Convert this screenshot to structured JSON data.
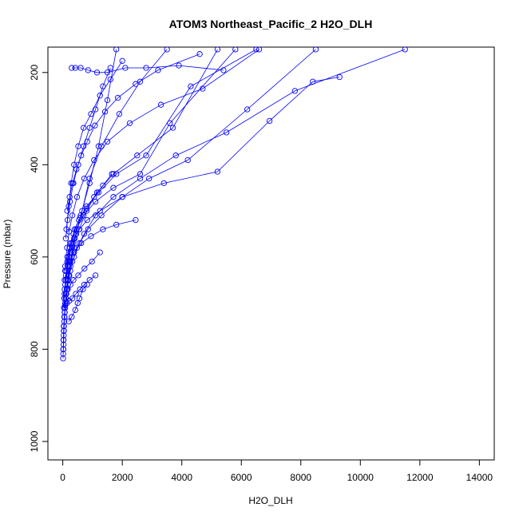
{
  "chart_data": {
    "type": "scatter",
    "title": "ATOM3 Northeast_Pacific_2 H2O_DLH",
    "xlabel": "H2O_DLH",
    "ylabel": "Pressure (mbar)",
    "xlim": [
      -500,
      14500
    ],
    "ylim": [
      1040,
      145
    ],
    "y_inverted": true,
    "x_ticks": [
      0,
      2000,
      4000,
      6000,
      8000,
      10000,
      12000,
      14000
    ],
    "x_tick_labels": [
      "0",
      "2000",
      "4000",
      "6000",
      "8000",
      "10000",
      "12000",
      "14000"
    ],
    "y_ticks": [
      200,
      400,
      600,
      800,
      1000
    ],
    "y_tick_labels": [
      "200",
      "400",
      "600",
      "800",
      "1000"
    ],
    "grid": false,
    "legend": "none",
    "line_color": "#0000ff",
    "marker": "open-circle",
    "series": [
      {
        "x": [
          10,
          15,
          20,
          30,
          60,
          100,
          150,
          250,
          400,
          600,
          900,
          1200,
          1500,
          1800
        ],
        "y": [
          820,
          800,
          780,
          750,
          720,
          690,
          650,
          610,
          560,
          510,
          440,
          360,
          260,
          150
        ]
      },
      {
        "x": [
          15,
          25,
          40,
          60,
          90,
          130,
          200,
          300,
          450,
          650,
          900,
          1300,
          1900,
          2600,
          3500
        ],
        "y": [
          810,
          790,
          760,
          730,
          700,
          670,
          640,
          600,
          550,
          500,
          430,
          360,
          290,
          220,
          150
        ]
      },
      {
        "x": [
          20,
          30,
          50,
          80,
          120,
          180,
          260,
          380,
          550,
          800,
          1150,
          1700,
          2500,
          3700,
          5200
        ],
        "y": [
          800,
          770,
          740,
          710,
          680,
          650,
          620,
          580,
          540,
          500,
          460,
          420,
          380,
          320,
          150
        ]
      },
      {
        "x": [
          25,
          40,
          70,
          110,
          170,
          250,
          380,
          560,
          850,
          1300,
          2000,
          2900,
          4200,
          6200,
          8500
        ],
        "y": [
          780,
          750,
          720,
          690,
          660,
          630,
          600,
          570,
          540,
          510,
          470,
          430,
          390,
          280,
          150
        ]
      },
      {
        "x": [
          30,
          50,
          80,
          140,
          220,
          320,
          480,
          720,
          1100,
          1700,
          2600,
          3800,
          5500,
          7800,
          11500
        ],
        "y": [
          760,
          730,
          700,
          670,
          640,
          610,
          580,
          550,
          510,
          470,
          430,
          380,
          330,
          240,
          150
        ]
      },
      {
        "x": [
          40,
          60,
          100,
          160,
          250,
          380,
          560,
          820,
          1250,
          2000,
          3400,
          5200,
          6950,
          8400,
          9300
        ],
        "y": [
          710,
          680,
          650,
          620,
          590,
          560,
          540,
          520,
          500,
          470,
          440,
          415,
          305,
          220,
          210
        ]
      },
      {
        "x": [
          50,
          80,
          120,
          200,
          300,
          450,
          700,
          1100,
          1700,
          2600,
          3600,
          5800
        ],
        "y": [
          690,
          660,
          630,
          600,
          570,
          540,
          510,
          480,
          450,
          420,
          310,
          150
        ]
      },
      {
        "x": [
          60,
          100,
          150,
          240,
          360,
          540,
          800,
          1200,
          1800,
          2800,
          4300,
          6500
        ],
        "y": [
          670,
          640,
          610,
          580,
          550,
          520,
          490,
          460,
          420,
          380,
          230,
          150
        ]
      },
      {
        "x": [
          300,
          420,
          600,
          850,
          1150,
          1500,
          2100,
          2800,
          3900,
          5400
        ],
        "y": [
          190,
          190,
          190,
          195,
          200,
          200,
          190,
          190,
          185,
          195
        ]
      },
      {
        "x": [
          80,
          140,
          210,
          320,
          480,
          720,
          1050,
          1500,
          2250,
          3300,
          4700,
          6600
        ],
        "y": [
          620,
          580,
          545,
          510,
          470,
          430,
          390,
          350,
          310,
          270,
          235,
          150
        ]
      },
      {
        "x": [
          100,
          160,
          240,
          360,
          520,
          700,
          900,
          1100,
          1350,
          1600
        ],
        "y": [
          560,
          520,
          480,
          440,
          400,
          360,
          320,
          280,
          230,
          190
        ]
      },
      {
        "x": [
          120,
          200,
          280,
          380,
          520,
          700,
          950,
          1250,
          1600,
          2000
        ],
        "y": [
          540,
          490,
          440,
          400,
          360,
          320,
          290,
          250,
          215,
          175
        ]
      },
      {
        "x": [
          150,
          230,
          330,
          460,
          620,
          820,
          1080,
          1420,
          1850,
          2450,
          3200,
          4600
        ],
        "y": [
          500,
          470,
          440,
          410,
          380,
          350,
          315,
          285,
          255,
          225,
          195,
          160
        ]
      },
      {
        "x": [
          80,
          150,
          260,
          400,
          580,
          800,
          1050,
          1350,
          1650
        ],
        "y": [
          630,
          600,
          570,
          540,
          515,
          495,
          470,
          445,
          420
        ]
      },
      {
        "x": [
          60,
          120,
          220,
          380,
          620,
          950,
          1350,
          1800,
          2450
        ],
        "y": [
          650,
          630,
          610,
          590,
          570,
          555,
          540,
          530,
          520
        ]
      },
      {
        "x": [
          50,
          100,
          170,
          260,
          360,
          520,
          730,
          980,
          1250
        ],
        "y": [
          690,
          680,
          670,
          660,
          650,
          640,
          625,
          610,
          590
        ]
      },
      {
        "x": [
          40,
          80,
          140,
          220,
          320,
          440,
          580,
          720,
          900,
          1100
        ],
        "y": [
          710,
          705,
          700,
          695,
          690,
          680,
          670,
          660,
          650,
          640
        ]
      },
      {
        "x": [
          200,
          300,
          420,
          500,
          560,
          680,
          820
        ],
        "y": [
          740,
          730,
          715,
          700,
          690,
          670,
          660
        ]
      }
    ]
  }
}
